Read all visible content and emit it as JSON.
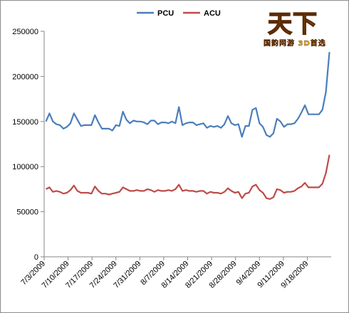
{
  "chart_data": {
    "type": "line",
    "title": "",
    "xlabel": "",
    "ylabel": "",
    "ylim": [
      0,
      250000
    ],
    "y_ticks": [
      "0",
      "50000",
      "100000",
      "150000",
      "200000",
      "250000"
    ],
    "x_ticks": [
      "7/3/2009",
      "7/10/2009",
      "7/17/2009",
      "7/24/2009",
      "7/31/2009",
      "8/7/2009",
      "8/14/2009",
      "8/21/2009",
      "8/28/2009",
      "9/4/2009",
      "9/11/2009",
      "9/18/2009"
    ],
    "x_start": "7/3/2009",
    "x_end": "9/25/2009",
    "legend_position": "top",
    "grid": false,
    "series": [
      {
        "name": "PCU",
        "color": "#4a7ebb",
        "values": [
          150000,
          159000,
          150000,
          147000,
          146000,
          142000,
          144000,
          148000,
          159000,
          152000,
          145000,
          146000,
          146000,
          146000,
          157000,
          149000,
          142000,
          142000,
          142000,
          140000,
          146000,
          145000,
          161000,
          152000,
          148000,
          151000,
          150000,
          150000,
          149000,
          147000,
          151000,
          151000,
          147000,
          149000,
          149000,
          148000,
          150000,
          148000,
          166000,
          146000,
          148000,
          149000,
          149000,
          146000,
          147000,
          148000,
          143000,
          145000,
          144000,
          145000,
          143000,
          147000,
          156000,
          148000,
          146000,
          147000,
          133000,
          145000,
          145000,
          163000,
          165000,
          148000,
          144000,
          135000,
          133000,
          137000,
          153000,
          150000,
          144000,
          147000,
          147000,
          148000,
          153000,
          160000,
          168000,
          158000,
          158000,
          158000,
          158000,
          163000,
          183000,
          227000
        ]
      },
      {
        "name": "ACU",
        "color": "#be4b48",
        "values": [
          75000,
          77000,
          72000,
          73000,
          72000,
          70000,
          71000,
          74000,
          79000,
          73000,
          71000,
          71000,
          71000,
          70000,
          78000,
          73000,
          70000,
          70000,
          69000,
          70000,
          71000,
          72000,
          77000,
          75000,
          73000,
          73000,
          74000,
          73000,
          73000,
          75000,
          74000,
          72000,
          74000,
          73000,
          73000,
          74000,
          73000,
          75000,
          80000,
          73000,
          74000,
          73000,
          73000,
          72000,
          73000,
          73000,
          70000,
          72000,
          71000,
          71000,
          70000,
          72000,
          76000,
          73000,
          71000,
          72000,
          65000,
          70000,
          71000,
          78000,
          80000,
          74000,
          71000,
          65000,
          64000,
          66000,
          75000,
          74000,
          71000,
          72000,
          72000,
          73000,
          76000,
          78000,
          82000,
          77000,
          77000,
          77000,
          77000,
          81000,
          93000,
          113000
        ]
      }
    ]
  },
  "logo": {
    "main_text": "天下",
    "dot": "3",
    "sub_text": "国韵网游 3D首选"
  }
}
